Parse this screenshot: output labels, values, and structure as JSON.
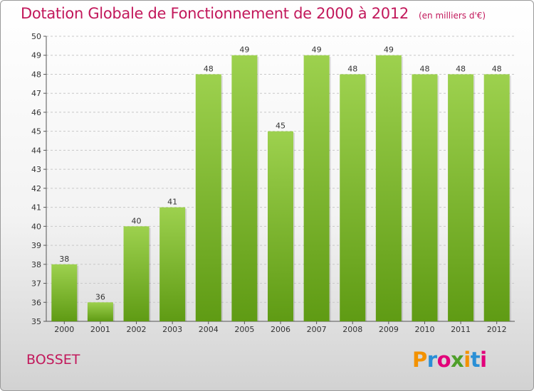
{
  "title": "Dotation Globale de Fonctionnement de 2000 à 2012",
  "subtitle": "(en milliers d'€)",
  "commune": "BOSSET",
  "logo": {
    "letters": [
      "P",
      "r",
      "o",
      "x",
      "i",
      "t",
      "i"
    ],
    "colors": [
      "#f39200",
      "#2a8fd6",
      "#e2007a",
      "#4f9f2a",
      "#f39200",
      "#2a8fd6",
      "#e2007a"
    ]
  },
  "colors": {
    "bar_light": "#9dd14e",
    "bar_dark": "#5f9b14",
    "grid": "#c8c8c8",
    "text": "#c2185b"
  },
  "chart_data": {
    "type": "bar",
    "categories": [
      "2000",
      "2001",
      "2002",
      "2003",
      "2004",
      "2005",
      "2006",
      "2007",
      "2008",
      "2009",
      "2010",
      "2011",
      "2012"
    ],
    "values": [
      38,
      36,
      40,
      41,
      48,
      49,
      45,
      49,
      48,
      49,
      48,
      48,
      48
    ],
    "ylim": [
      35,
      50
    ],
    "yticks": [
      35,
      36,
      37,
      38,
      39,
      40,
      41,
      42,
      43,
      44,
      45,
      46,
      47,
      48,
      49,
      50
    ],
    "grid": true,
    "title": "Dotation Globale de Fonctionnement de 2000 à 2012",
    "subtitle": "(en milliers d'€)",
    "xlabel": "",
    "ylabel": ""
  }
}
